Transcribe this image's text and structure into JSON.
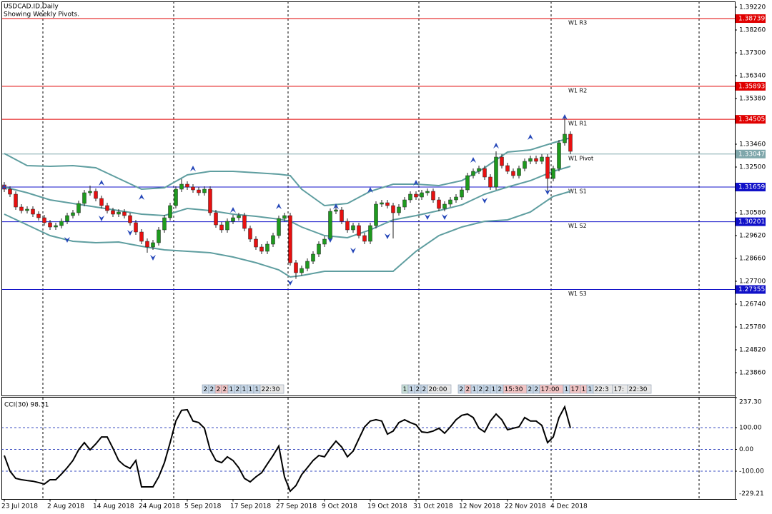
{
  "chart_data": [
    {
      "type": "candlestick",
      "title": "USDCAD.ID,Daily",
      "subtitle": "Showing Weekly Pivots.",
      "categories": [
        "23 Jul 2018",
        null,
        null,
        null,
        null,
        null,
        null,
        null,
        "2 Aug 2018",
        null,
        null,
        null,
        null,
        null,
        null,
        null,
        "14 Aug 2018",
        null,
        null,
        null,
        null,
        null,
        null,
        null,
        "24 Aug 2018",
        null,
        null,
        null,
        null,
        null,
        null,
        null,
        "5 Sep 2018",
        null,
        null,
        null,
        null,
        null,
        null,
        null,
        "17 Sep 2018",
        null,
        null,
        null,
        null,
        null,
        null,
        null,
        "27 Sep 2018",
        null,
        null,
        null,
        null,
        null,
        null,
        null,
        "9 Oct 2018",
        null,
        null,
        null,
        null,
        null,
        null,
        null,
        "19 Oct 2018",
        null,
        null,
        null,
        null,
        null,
        null,
        null,
        "31 Oct 2018",
        null,
        null,
        null,
        null,
        null,
        null,
        null,
        "12 Nov 2018",
        null,
        null,
        null,
        null,
        null,
        null,
        null,
        "22 Nov 2018",
        null,
        null,
        null,
        null,
        null,
        null,
        null,
        "4 Dec 2018",
        null,
        null,
        null
      ],
      "ohlc": [
        [
          1.3175,
          1.3187,
          1.3145,
          1.3157
        ],
        [
          1.3157,
          1.3169,
          1.3124,
          1.3136
        ],
        [
          1.3136,
          1.3148,
          1.307,
          1.3082
        ],
        [
          1.3082,
          1.3094,
          1.3055,
          1.3067
        ],
        [
          1.3067,
          1.3085,
          1.3055,
          1.3073
        ],
        [
          1.3073,
          1.3085,
          1.304,
          1.3052
        ],
        [
          1.3052,
          1.3064,
          1.3025,
          1.3037
        ],
        [
          1.3037,
          1.3049,
          1.3004,
          1.3016
        ],
        [
          1.3016,
          1.3028,
          1.2986,
          1.2998
        ],
        [
          1.2998,
          1.3016,
          1.2986,
          1.3004
        ],
        [
          1.3004,
          1.3034,
          1.2992,
          1.3022
        ],
        [
          1.3022,
          1.3058,
          1.301,
          1.3046
        ],
        [
          1.3046,
          1.307,
          1.3034,
          1.3058
        ],
        [
          1.3058,
          1.3109,
          1.3046,
          1.3097
        ],
        [
          1.3097,
          1.3154,
          1.3085,
          1.3142
        ],
        [
          1.3142,
          1.3172,
          1.313,
          1.3148
        ],
        [
          1.3148,
          1.316,
          1.3106,
          1.3118
        ],
        [
          1.3118,
          1.313,
          1.3076,
          1.3088
        ],
        [
          1.3088,
          1.31,
          1.3055,
          1.3067
        ],
        [
          1.3067,
          1.3079,
          1.304,
          1.3052
        ],
        [
          1.3052,
          1.3073,
          1.304,
          1.3061
        ],
        [
          1.3061,
          1.3073,
          1.3034,
          1.3046
        ],
        [
          1.3046,
          1.3058,
          1.3004,
          1.3016
        ],
        [
          1.3016,
          1.3028,
          1.2965,
          1.2977
        ],
        [
          1.2977,
          1.2989,
          1.2926,
          1.2938
        ],
        [
          1.2938,
          1.295,
          1.289,
          1.2914
        ],
        [
          1.2914,
          1.2944,
          1.2902,
          1.2932
        ],
        [
          1.2932,
          1.2998,
          1.292,
          1.2986
        ],
        [
          1.2986,
          1.3049,
          1.2974,
          1.3037
        ],
        [
          1.3037,
          1.31,
          1.3025,
          1.3088
        ],
        [
          1.3088,
          1.3169,
          1.3076,
          1.3157
        ],
        [
          1.3157,
          1.32,
          1.3145,
          1.3178
        ],
        [
          1.3178,
          1.319,
          1.3154,
          1.3166
        ],
        [
          1.3166,
          1.3178,
          1.3142,
          1.3154
        ],
        [
          1.3154,
          1.3166,
          1.313,
          1.3142
        ],
        [
          1.3142,
          1.3169,
          1.313,
          1.3157
        ],
        [
          1.3157,
          1.3169,
          1.3046,
          1.3058
        ],
        [
          1.3058,
          1.307,
          1.2995,
          1.3007
        ],
        [
          1.3007,
          1.3019,
          1.2974,
          1.2986
        ],
        [
          1.2986,
          1.3034,
          1.2974,
          1.3022
        ],
        [
          1.3022,
          1.3049,
          1.301,
          1.3037
        ],
        [
          1.3037,
          1.3058,
          1.3025,
          1.3046
        ],
        [
          1.3046,
          1.3058,
          1.298,
          1.2992
        ],
        [
          1.2992,
          1.3004,
          1.2935,
          1.2947
        ],
        [
          1.2947,
          1.2959,
          1.2902,
          1.2914
        ],
        [
          1.2914,
          1.2926,
          1.2884,
          1.2896
        ],
        [
          1.2896,
          1.2938,
          1.2884,
          1.2926
        ],
        [
          1.2926,
          1.2974,
          1.2914,
          1.2962
        ],
        [
          1.2962,
          1.3046,
          1.295,
          1.3034
        ],
        [
          1.3034,
          1.3058,
          1.3022,
          1.3046
        ],
        [
          1.3046,
          1.3058,
          1.2836,
          1.2848
        ],
        [
          1.2848,
          1.286,
          1.278,
          1.2806
        ],
        [
          1.2806,
          1.2836,
          1.2794,
          1.2824
        ],
        [
          1.2824,
          1.2866,
          1.2812,
          1.2854
        ],
        [
          1.2854,
          1.2896,
          1.2842,
          1.2884
        ],
        [
          1.2884,
          1.2938,
          1.2872,
          1.2926
        ],
        [
          1.2926,
          1.2959,
          1.2914,
          1.2947
        ],
        [
          1.2947,
          1.3076,
          1.2935,
          1.3064
        ],
        [
          1.3064,
          1.3082,
          1.3052,
          1.307
        ],
        [
          1.307,
          1.3082,
          1.301,
          1.3022
        ],
        [
          1.3022,
          1.3034,
          1.2974,
          1.2986
        ],
        [
          1.2986,
          1.3016,
          1.2974,
          1.3004
        ],
        [
          1.3004,
          1.3016,
          1.295,
          1.2962
        ],
        [
          1.2962,
          1.2974,
          1.2926,
          1.2938
        ],
        [
          1.2938,
          1.3016,
          1.2926,
          1.3004
        ],
        [
          1.3004,
          1.3106,
          1.2992,
          1.3094
        ],
        [
          1.3094,
          1.3112,
          1.3082,
          1.31
        ],
        [
          1.31,
          1.3112,
          1.3076,
          1.3088
        ],
        [
          1.3088,
          1.31,
          1.295,
          1.3058
        ],
        [
          1.3058,
          1.3094,
          1.3046,
          1.3082
        ],
        [
          1.3082,
          1.3124,
          1.307,
          1.3112
        ],
        [
          1.3112,
          1.3148,
          1.31,
          1.3136
        ],
        [
          1.3136,
          1.3148,
          1.3112,
          1.3124
        ],
        [
          1.3124,
          1.3154,
          1.3112,
          1.3142
        ],
        [
          1.3142,
          1.316,
          1.313,
          1.3148
        ],
        [
          1.3148,
          1.316,
          1.31,
          1.3112
        ],
        [
          1.3112,
          1.3124,
          1.3064,
          1.3076
        ],
        [
          1.3076,
          1.3106,
          1.3064,
          1.3094
        ],
        [
          1.3094,
          1.3124,
          1.3082,
          1.3112
        ],
        [
          1.3112,
          1.3136,
          1.31,
          1.3124
        ],
        [
          1.3124,
          1.3166,
          1.3112,
          1.3154
        ],
        [
          1.3154,
          1.3226,
          1.3142,
          1.3214
        ],
        [
          1.3214,
          1.3244,
          1.3202,
          1.3232
        ],
        [
          1.3232,
          1.3256,
          1.322,
          1.3244
        ],
        [
          1.3244,
          1.3256,
          1.3196,
          1.3208
        ],
        [
          1.3208,
          1.322,
          1.3154,
          1.3166
        ],
        [
          1.3166,
          1.3316,
          1.3154,
          1.3292
        ],
        [
          1.3292,
          1.3304,
          1.3244,
          1.3256
        ],
        [
          1.3256,
          1.3268,
          1.322,
          1.3232
        ],
        [
          1.3232,
          1.3244,
          1.3202,
          1.3214
        ],
        [
          1.3214,
          1.3256,
          1.3202,
          1.3244
        ],
        [
          1.3244,
          1.3286,
          1.3232,
          1.3274
        ],
        [
          1.3274,
          1.3298,
          1.3262,
          1.3286
        ],
        [
          1.3286,
          1.3298,
          1.3262,
          1.3274
        ],
        [
          1.3274,
          1.3304,
          1.3262,
          1.3292
        ],
        [
          1.3292,
          1.3304,
          1.315,
          1.3202
        ],
        [
          1.3202,
          1.3256,
          1.319,
          1.3244
        ],
        [
          1.3244,
          1.3364,
          1.3232,
          1.3352
        ],
        [
          1.3352,
          1.346,
          1.334,
          1.3388
        ],
        [
          1.3388,
          1.34,
          1.3304,
          1.3316
        ]
      ],
      "up_color": "#1e9a1e",
      "down_color": "#e81010",
      "ylim": [
        1.2287,
        1.3946
      ],
      "yticks": [
        {
          "value": 1.3922,
          "label": "1.39220"
        },
        {
          "value": 1.3826,
          "label": "1.38260"
        },
        {
          "value": 1.373,
          "label": "1.37300"
        },
        {
          "value": 1.3634,
          "label": "1.36340"
        },
        {
          "value": 1.3538,
          "label": "1.35380"
        },
        {
          "value": 1.3346,
          "label": "1.33460"
        },
        {
          "value": 1.325,
          "label": "1.32500"
        },
        {
          "value": 1.3058,
          "label": "1.30580"
        },
        {
          "value": 1.2962,
          "label": "1.29620"
        },
        {
          "value": 1.2866,
          "label": "1.28660"
        },
        {
          "value": 1.277,
          "label": "1.27700"
        },
        {
          "value": 1.2674,
          "label": "1.26740"
        },
        {
          "value": 1.2578,
          "label": "1.25780"
        },
        {
          "value": 1.2482,
          "label": "1.24820"
        },
        {
          "value": 1.2386,
          "label": "1.23860"
        }
      ],
      "pivots": [
        {
          "name": "W1 R3",
          "value": 1.38739,
          "color": "#e00000"
        },
        {
          "name": "W1 R2",
          "value": 1.35893,
          "color": "#e00000"
        },
        {
          "name": "W1 R1",
          "value": 1.34505,
          "color": "#e00000"
        },
        {
          "name": "W1 Pivot",
          "value": 1.33047,
          "color": "#7fa7ab"
        },
        {
          "name": "W1 S1",
          "value": 1.31659,
          "color": "#1010c8"
        },
        {
          "name": "W1 S2",
          "value": 1.30201,
          "color": "#1010c8"
        },
        {
          "name": "W1 S3",
          "value": 1.27355,
          "color": "#1010c8"
        }
      ],
      "bollinger": {
        "color": "#5f9ea0",
        "x": [
          0,
          4,
          8,
          12,
          16,
          20,
          24,
          28,
          32,
          36,
          40,
          44,
          48,
          50,
          52,
          56,
          60,
          64,
          68,
          72,
          76,
          80,
          84,
          88,
          92,
          96,
          99
        ],
        "upper": [
          1.3307,
          1.3256,
          1.3253,
          1.3256,
          1.3247,
          1.3202,
          1.3157,
          1.3163,
          1.3217,
          1.3232,
          1.3232,
          1.3226,
          1.322,
          1.3214,
          1.3157,
          1.3088,
          1.3097,
          1.3148,
          1.3178,
          1.3178,
          1.3172,
          1.3193,
          1.3247,
          1.3313,
          1.3322,
          1.3352,
          1.3373
        ],
        "middle": [
          1.3166,
          1.3142,
          1.3112,
          1.3097,
          1.3082,
          1.3067,
          1.3052,
          1.3046,
          1.3076,
          1.3067,
          1.3052,
          1.3043,
          1.3031,
          1.3022,
          1.2998,
          1.2962,
          1.2953,
          1.2986,
          1.3028,
          1.3046,
          1.3067,
          1.3091,
          1.3136,
          1.3166,
          1.3193,
          1.3232,
          1.3253
        ],
        "lower": [
          1.3052,
          1.3007,
          1.2962,
          1.2938,
          1.2932,
          1.2935,
          1.2917,
          1.2902,
          1.2896,
          1.289,
          1.2872,
          1.2848,
          1.2818,
          1.2788,
          1.2794,
          1.2812,
          1.2812,
          1.2812,
          1.2812,
          1.2896,
          1.2962,
          1.2998,
          1.3022,
          1.3028,
          1.3061,
          1.3127,
          1.3148
        ]
      },
      "fractals": {
        "color": "#2446b8",
        "up": {
          "x": [
            0,
            17,
            24,
            33,
            40,
            48,
            58,
            64,
            72,
            82,
            86,
            92,
            98
          ],
          "values": [
            1.3178,
            1.3196,
            1.3136,
            1.3256,
            1.3082,
            1.3097,
            1.3097,
            1.3166,
            1.3196,
            1.3292,
            1.3352,
            1.3388,
            1.3472
          ]
        },
        "down": {
          "x": [
            11,
            17,
            22,
            26,
            50,
            57,
            61,
            67,
            74,
            77,
            84,
            95
          ],
          "values": [
            1.2932,
            1.3022,
            1.2962,
            1.2857,
            1.2752,
            1.2932,
            1.2887,
            1.2947,
            1.3028,
            1.3028,
            1.3097,
            1.3133
          ]
        }
      },
      "events": [
        {
          "labels": [
            "2",
            "2",
            "2",
            "2",
            "1",
            "2",
            "1",
            "1",
            "1",
            "22:30"
          ],
          "colors": [
            "#c8d8e8",
            "#c8d8e8",
            "#f2c4c4",
            "#f2c4c4",
            "#c8d8e8",
            "#c8d8e8",
            "#c8d8e8",
            "#c8d8e8",
            "#c8d8e8",
            "#e8e8e8"
          ]
        },
        {
          "labels": [
            "1",
            "1",
            "2",
            "2",
            "20:00"
          ],
          "colors": [
            "#c8e0d8",
            "#c8d8e8",
            "#c8d8e8",
            "#c8d8e8",
            "#e8e8e8"
          ]
        },
        {
          "labels": [
            "2",
            "2",
            "1",
            "2",
            "2",
            "1",
            "2",
            "15:30",
            "2",
            "2",
            "17:00",
            "1",
            "17",
            "1",
            "1",
            "22:3",
            "17:",
            "22:30"
          ],
          "colors": [
            "#c8d8e8",
            "#f2c4c4",
            "#c8d8e8",
            "#c8d8e8",
            "#c8d8e8",
            "#c8d8e8",
            "#c8d8e8",
            "#f2c4c4",
            "#c8d8e8",
            "#c8d8e8",
            "#f2c4c4",
            "#c8d8e8",
            "#f2c4c4",
            "#f2c4c4",
            "#c8d8e8",
            "#e8e8e8",
            "#e8e8e8",
            "#e8e8e8"
          ]
        }
      ]
    },
    {
      "type": "line",
      "title": "CCI(30) 98.31",
      "color": "#000000",
      "values": [
        -28,
        -100,
        -133,
        -139,
        -143,
        -146,
        -152,
        -159,
        -139,
        -139,
        -113,
        -84,
        -51,
        -2,
        31,
        -2,
        25,
        57,
        57,
        5,
        -51,
        -74,
        -87,
        -51,
        -172,
        -172,
        -172,
        -126,
        -61,
        31,
        130,
        179,
        182,
        130,
        123,
        97,
        -2,
        -51,
        -61,
        -34,
        -51,
        -84,
        -133,
        -149,
        -126,
        -107,
        -67,
        -28,
        15,
        -126,
        -192,
        -166,
        -116,
        -84,
        -51,
        -28,
        -34,
        5,
        38,
        11,
        -34,
        -8,
        48,
        103,
        130,
        136,
        130,
        70,
        84,
        123,
        136,
        123,
        113,
        80,
        77,
        84,
        97,
        74,
        103,
        136,
        156,
        162,
        146,
        97,
        80,
        130,
        162,
        136,
        90,
        97,
        103,
        146,
        130,
        130,
        110,
        31,
        57,
        146,
        195,
        98.31
      ],
      "ylim": [
        -229.21,
        237.3
      ],
      "yticks": [
        {
          "value": 237.3,
          "label": "237.30"
        },
        {
          "value": 100,
          "label": "100.00"
        },
        {
          "value": 0,
          "label": "0.00"
        },
        {
          "value": -100,
          "label": "-100.00"
        },
        {
          "value": -229.21,
          "label": "-229.21"
        }
      ],
      "level_color": "#3a4cc0"
    }
  ]
}
